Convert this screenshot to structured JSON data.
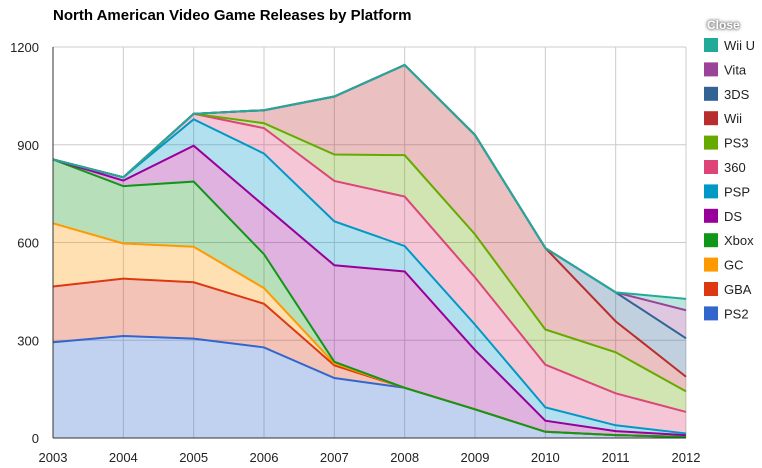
{
  "chart_data": {
    "type": "area",
    "stacked": true,
    "title": "North American Video Game Releases by Platform",
    "x": [
      2003,
      2004,
      2005,
      2006,
      2007,
      2008,
      2009,
      2010,
      2011,
      2012
    ],
    "ylim": [
      0,
      1200
    ],
    "yticks": [
      0,
      300,
      600,
      900,
      1200
    ],
    "grid": true,
    "legend_position": "right",
    "series": [
      {
        "name": "PS2",
        "color": "#3366cc",
        "values": [
          294,
          313,
          305,
          278,
          184,
          154,
          88,
          19,
          9,
          3
        ]
      },
      {
        "name": "GBA",
        "color": "#dc3912",
        "values": [
          171,
          176,
          173,
          134,
          39,
          0,
          0,
          0,
          0,
          0
        ]
      },
      {
        "name": "GC",
        "color": "#ff9900",
        "values": [
          194,
          108,
          109,
          48,
          6,
          0,
          0,
          0,
          0,
          0
        ]
      },
      {
        "name": "Xbox",
        "color": "#109618",
        "values": [
          196,
          176,
          200,
          104,
          5,
          0,
          0,
          0,
          0,
          0
        ]
      },
      {
        "name": "DS",
        "color": "#990099",
        "values": [
          0,
          17,
          110,
          149,
          296,
          357,
          182,
          34,
          12,
          6
        ]
      },
      {
        "name": "PSP",
        "color": "#0099c6",
        "values": [
          0,
          10,
          81,
          160,
          135,
          78,
          78,
          41,
          18,
          5
        ]
      },
      {
        "name": "360",
        "color": "#dd4477",
        "values": [
          0,
          0,
          17,
          78,
          124,
          152,
          145,
          131,
          98,
          66
        ]
      },
      {
        "name": "PS3",
        "color": "#66aa00",
        "values": [
          0,
          0,
          0,
          15,
          81,
          127,
          132,
          108,
          126,
          63
        ]
      },
      {
        "name": "Wii",
        "color": "#b82e2e",
        "values": [
          0,
          0,
          0,
          40,
          178,
          277,
          305,
          250,
          95,
          45
        ]
      },
      {
        "name": "3DS",
        "color": "#316395",
        "values": [
          0,
          0,
          0,
          0,
          0,
          0,
          0,
          0,
          89,
          118
        ]
      },
      {
        "name": "Vita",
        "color": "#994499",
        "values": [
          0,
          0,
          0,
          0,
          0,
          0,
          0,
          0,
          0,
          86
        ]
      },
      {
        "name": "Wii U",
        "color": "#22aa99",
        "values": [
          0,
          0,
          0,
          0,
          0,
          0,
          0,
          0,
          0,
          35
        ]
      }
    ]
  },
  "close_label": "Close"
}
